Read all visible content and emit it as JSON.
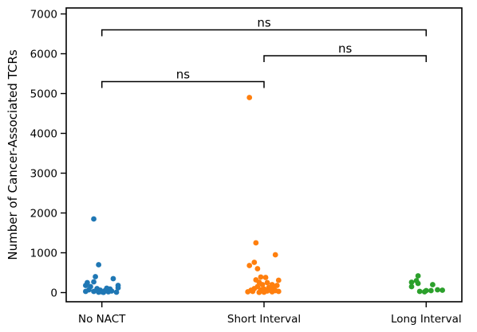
{
  "chart_data": {
    "type": "scatter",
    "style": "strip",
    "title": "",
    "xlabel": "",
    "ylabel": "Number of Cancer-Associated TCRs",
    "ylim": [
      -230,
      7150
    ],
    "yticks": [
      0,
      1000,
      2000,
      3000,
      4000,
      5000,
      6000,
      7000
    ],
    "categories": [
      "No NACT",
      "Short Interval",
      "Long Interval"
    ],
    "grid": false,
    "legend": "none",
    "series": [
      {
        "color": "#1f77b4",
        "points": [
          {
            "x": -0.05,
            "y": 1850
          },
          {
            "x": -0.02,
            "y": 700
          },
          {
            "x": -0.04,
            "y": 400
          },
          {
            "x": 0.07,
            "y": 350
          },
          {
            "x": -0.05,
            "y": 270
          },
          {
            "x": -0.09,
            "y": 250
          },
          {
            "x": -0.1,
            "y": 180
          },
          {
            "x": 0.1,
            "y": 180
          },
          {
            "x": -0.07,
            "y": 150
          },
          {
            "x": 0.1,
            "y": 120
          },
          {
            "x": -0.03,
            "y": 100
          },
          {
            "x": 0.03,
            "y": 110
          },
          {
            "x": 0.05,
            "y": 90
          },
          {
            "x": -0.08,
            "y": 70
          },
          {
            "x": -0.01,
            "y": 60
          },
          {
            "x": 0.02,
            "y": 50
          },
          {
            "x": 0.06,
            "y": 40
          },
          {
            "x": -0.1,
            "y": 30
          },
          {
            "x": -0.05,
            "y": 30
          },
          {
            "x": 0.0,
            "y": 20
          },
          {
            "x": 0.04,
            "y": 20
          },
          {
            "x": -0.02,
            "y": 10
          },
          {
            "x": 0.09,
            "y": 10
          },
          {
            "x": 0.01,
            "y": 5
          }
        ]
      },
      {
        "color": "#ff7f0e",
        "points": [
          {
            "x": -0.09,
            "y": 4900
          },
          {
            "x": -0.05,
            "y": 1250
          },
          {
            "x": 0.07,
            "y": 950
          },
          {
            "x": -0.06,
            "y": 760
          },
          {
            "x": -0.09,
            "y": 680
          },
          {
            "x": -0.04,
            "y": 600
          },
          {
            "x": -0.02,
            "y": 390
          },
          {
            "x": 0.01,
            "y": 380
          },
          {
            "x": -0.05,
            "y": 320
          },
          {
            "x": 0.09,
            "y": 310
          },
          {
            "x": -0.03,
            "y": 260
          },
          {
            "x": 0.02,
            "y": 250
          },
          {
            "x": -0.01,
            "y": 200
          },
          {
            "x": 0.05,
            "y": 200
          },
          {
            "x": 0.08,
            "y": 180
          },
          {
            "x": -0.04,
            "y": 150
          },
          {
            "x": 0.03,
            "y": 130
          },
          {
            "x": 0.06,
            "y": 120
          },
          {
            "x": -0.06,
            "y": 100
          },
          {
            "x": 0.0,
            "y": 90
          },
          {
            "x": 0.04,
            "y": 80
          },
          {
            "x": -0.02,
            "y": 70
          },
          {
            "x": -0.08,
            "y": 60
          },
          {
            "x": 0.07,
            "y": 50
          },
          {
            "x": 0.02,
            "y": 40
          },
          {
            "x": -0.07,
            "y": 30
          },
          {
            "x": 0.09,
            "y": 30
          },
          {
            "x": 0.05,
            "y": 20
          },
          {
            "x": -0.1,
            "y": 20
          },
          {
            "x": 0.0,
            "y": 10
          },
          {
            "x": -0.03,
            "y": 5
          }
        ]
      },
      {
        "color": "#2ca02c",
        "points": [
          {
            "x": -0.05,
            "y": 420
          },
          {
            "x": -0.06,
            "y": 300
          },
          {
            "x": -0.09,
            "y": 260
          },
          {
            "x": -0.05,
            "y": 230
          },
          {
            "x": 0.04,
            "y": 200
          },
          {
            "x": -0.09,
            "y": 150
          },
          {
            "x": 0.07,
            "y": 70
          },
          {
            "x": 0.1,
            "y": 60
          },
          {
            "x": 0.0,
            "y": 50
          },
          {
            "x": 0.03,
            "y": 50
          },
          {
            "x": -0.04,
            "y": 30
          },
          {
            "x": -0.01,
            "y": 20
          }
        ]
      }
    ],
    "annotations": [
      {
        "from": 0,
        "to": 1,
        "y": 5300,
        "label": "ns"
      },
      {
        "from": 1,
        "to": 2,
        "y": 5950,
        "label": "ns"
      },
      {
        "from": 0,
        "to": 2,
        "y": 6600,
        "label": "ns"
      }
    ]
  }
}
